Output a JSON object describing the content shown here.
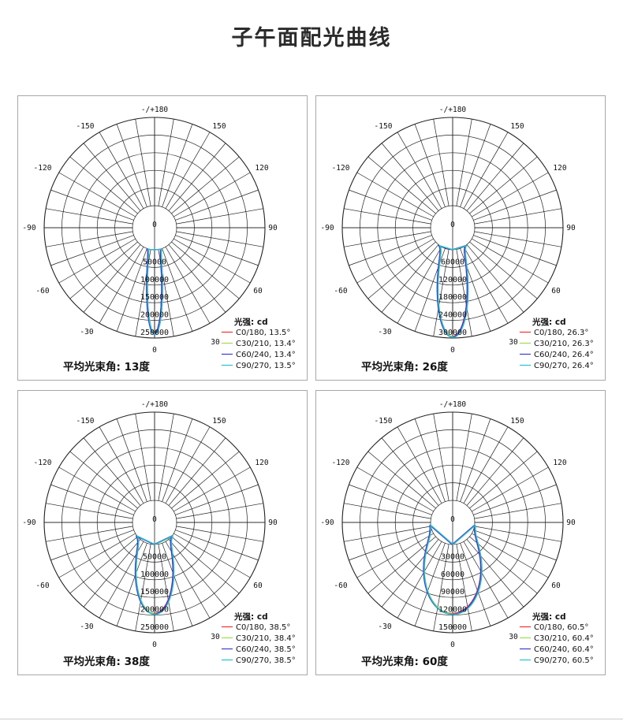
{
  "page_title": "子午面配光曲线",
  "chart_data": [
    {
      "type": "polar",
      "angle_labels": {
        "a180": "-/+180",
        "a150l": "-150",
        "a150r": "150",
        "a120l": "-120",
        "a120r": "120",
        "a90l": "-90",
        "a90r": "90",
        "a60l": "-60",
        "a60r": "60",
        "a30l": "-30",
        "a30r": "30",
        "a0c": "0",
        "a0b": "0"
      },
      "radial_max": 250000,
      "radial_ticks": [
        "50000",
        "100000",
        "150000",
        "200000",
        "250000"
      ],
      "legend_title": "光强: cd",
      "series": [
        {
          "name": "C0/180,  13.5°",
          "color": "#ff2a2a",
          "beam_angle": 13.5,
          "peak": 237000
        },
        {
          "name": "C30/210,  13.4°",
          "color": "#9ee04a",
          "beam_angle": 13.4,
          "peak": 238000
        },
        {
          "name": "C60/240,  13.4°",
          "color": "#3a3ad8",
          "beam_angle": 13.4,
          "peak": 239000
        },
        {
          "name": "C90/270,  13.5°",
          "color": "#21c4d6",
          "beam_angle": 13.5,
          "peak": 240000
        }
      ],
      "caption": "平均光束角: 13度"
    },
    {
      "type": "polar",
      "angle_labels": {
        "a180": "-/+180",
        "a150l": "-150",
        "a150r": "150",
        "a120l": "-120",
        "a120r": "120",
        "a90l": "-90",
        "a90r": "90",
        "a60l": "-60",
        "a60r": "60",
        "a30l": "-30",
        "a30r": "30",
        "a0c": "0",
        "a0b": "0"
      },
      "radial_max": 300000,
      "radial_ticks": [
        "60000",
        "120000",
        "180000",
        "240000",
        "300000"
      ],
      "legend_title": "光强: cd",
      "series": [
        {
          "name": "C0/180,  26.3°",
          "color": "#ff2a2a",
          "beam_angle": 26.3,
          "peak": 295000
        },
        {
          "name": "C30/210,  26.3°",
          "color": "#9ee04a",
          "beam_angle": 26.3,
          "peak": 296000
        },
        {
          "name": "C60/240,  26.4°",
          "color": "#3a3ad8",
          "beam_angle": 26.4,
          "peak": 297000
        },
        {
          "name": "C90/270,  26.4°",
          "color": "#21c4d6",
          "beam_angle": 26.4,
          "peak": 298000
        }
      ],
      "caption": "平均光束角: 26度"
    },
    {
      "type": "polar",
      "angle_labels": {
        "a180": "-/+180",
        "a150l": "-150",
        "a150r": "150",
        "a120l": "-120",
        "a120r": "120",
        "a90l": "-90",
        "a90r": "90",
        "a60l": "-60",
        "a60r": "60",
        "a30l": "-30",
        "a30r": "30",
        "a0c": "0",
        "a0b": "0"
      },
      "radial_max": 250000,
      "radial_ticks": [
        "50000",
        "100000",
        "150000",
        "200000",
        "250000"
      ],
      "legend_title": "光强: cd",
      "series": [
        {
          "name": "C0/180,  38.5°",
          "color": "#ff2a2a",
          "beam_angle": 38.5,
          "peak": 195000
        },
        {
          "name": "C30/210,  38.4°",
          "color": "#9ee04a",
          "beam_angle": 38.4,
          "peak": 196000
        },
        {
          "name": "C60/240,  38.5°",
          "color": "#3a3ad8",
          "beam_angle": 38.5,
          "peak": 197000
        },
        {
          "name": "C90/270,  38.5°",
          "color": "#21c4d6",
          "beam_angle": 38.5,
          "peak": 198000
        }
      ],
      "caption": "平均光束角: 38度"
    },
    {
      "type": "polar",
      "angle_labels": {
        "a180": "-/+180",
        "a150l": "-150",
        "a150r": "150",
        "a120l": "-120",
        "a120r": "120",
        "a90l": "-90",
        "a90r": "90",
        "a60l": "-60",
        "a60r": "60",
        "a30l": "-30",
        "a30r": "30",
        "a0c": "0",
        "a0b": "0"
      },
      "radial_max": 150000,
      "radial_ticks": [
        "30000",
        "60000",
        "90000",
        "120000",
        "150000"
      ],
      "legend_title": "光强: cd",
      "series": [
        {
          "name": "C0/180,  60.5°",
          "color": "#ff2a2a",
          "beam_angle": 60.5,
          "peak": 117000
        },
        {
          "name": "C30/210,  60.4°",
          "color": "#9ee04a",
          "beam_angle": 60.4,
          "peak": 118000
        },
        {
          "name": "C60/240,  60.4°",
          "color": "#3a3ad8",
          "beam_angle": 60.4,
          "peak": 118500
        },
        {
          "name": "C90/270,  60.5°",
          "color": "#21c4d6",
          "beam_angle": 60.5,
          "peak": 119000
        }
      ],
      "caption": "平均光束角: 60度"
    }
  ]
}
